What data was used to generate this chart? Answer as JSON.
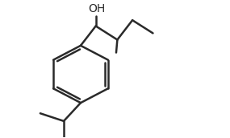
{
  "background": "#ffffff",
  "line_color": "#2a2a2a",
  "line_width": 1.8,
  "oh_label": "OH",
  "font_size": 10,
  "fig_width": 2.85,
  "fig_height": 1.72,
  "dpi": 100,
  "xlim": [
    0,
    10
  ],
  "ylim": [
    0,
    6.5
  ]
}
